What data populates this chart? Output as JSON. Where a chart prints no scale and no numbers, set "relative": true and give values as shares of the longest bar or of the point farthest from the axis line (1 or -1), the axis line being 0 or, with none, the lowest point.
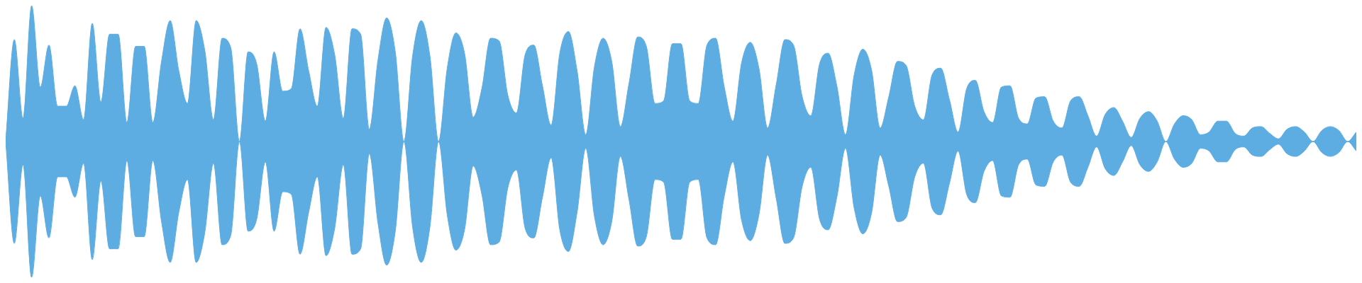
{
  "chart_data": {
    "type": "area",
    "relative": true,
    "legend": false,
    "marker": "none",
    "categories": [
      null,
      null,
      null,
      null,
      null,
      null,
      null,
      null,
      null,
      null,
      null,
      null,
      null,
      null,
      null,
      null,
      null,
      null,
      null,
      null,
      null,
      null,
      null,
      null,
      null,
      null,
      null,
      null,
      null,
      null,
      null,
      null,
      null,
      null,
      null,
      null,
      null,
      null,
      null,
      null,
      null,
      null,
      null,
      null,
      null,
      null,
      null,
      null,
      null,
      null,
      null,
      null,
      null,
      null,
      null,
      null,
      null,
      null,
      null,
      null,
      null,
      null,
      null,
      null,
      null,
      null,
      null,
      null,
      null,
      null,
      null,
      null,
      null,
      null,
      null,
      null,
      null,
      null,
      null,
      null,
      null,
      null,
      null,
      null,
      null,
      null,
      null,
      null,
      null,
      null,
      null,
      null,
      null,
      null,
      null,
      null,
      null,
      null,
      null,
      null,
      null,
      null,
      null,
      null,
      null,
      null,
      null,
      null,
      null,
      null,
      null,
      null,
      null,
      null,
      null,
      null,
      null,
      null,
      null,
      null,
      null,
      null,
      null,
      null,
      null,
      null,
      null,
      null,
      null,
      null,
      null,
      null,
      null,
      null,
      null,
      null,
      null,
      null,
      null,
      null,
      null,
      null,
      null,
      null,
      null,
      null,
      null,
      null,
      null,
      null,
      null,
      null,
      null,
      null,
      null,
      null,
      null
    ],
    "series": [
      {
        "color": "#5dade2",
        "values": [
          0,
          0.75,
          0.17,
          1,
          0.4,
          0.71,
          0.26,
          0.26,
          0.41,
          0.16,
          0.87,
          0.29,
          0.79,
          0.79,
          0.14,
          0.7,
          0.7,
          0.14,
          0.59,
          0.89,
          0.52,
          0.28,
          0.89,
          0.67,
          0.16,
          0.76,
          0.69,
          0,
          0.66,
          0.57,
          0.15,
          0.66,
          0.37,
          0.39,
          0.83,
          0.52,
          0.26,
          0.84,
          0.64,
          0.17,
          0.83,
          0.79,
          0.09,
          0.6,
          0.91,
          0.66,
          0,
          0.63,
          0.89,
          0.63,
          0,
          0.54,
          0.8,
          0.65,
          0.18,
          0.39,
          0.76,
          0.74,
          0.34,
          0.21,
          0.64,
          0.71,
          0.41,
          0.12,
          0.65,
          0.81,
          0.52,
          0.05,
          0.55,
          0.76,
          0.59,
          0.11,
          0.43,
          0.77,
          0.7,
          0.28,
          0.3,
          0.72,
          0.72,
          0.3,
          0.28,
          0.71,
          0.76,
          0.4,
          0.15,
          0.58,
          0.73,
          0.54,
          0.1,
          0.42,
          0.75,
          0.71,
          0.33,
          0.19,
          0.57,
          0.65,
          0.41,
          0.05,
          0.49,
          0.68,
          0.53,
          0.1,
          0.33,
          0.59,
          0.56,
          0.26,
          0.16,
          0.49,
          0.54,
          0.31,
          0.07,
          0.39,
          0.45,
          0.22,
          0.14,
          0.4,
          0.41,
          0.17,
          0.13,
          0.32,
          0.33,
          0.15,
          0.1,
          0.3,
          0.33,
          0.19,
          0.04,
          0.2,
          0.25,
          0.15,
          0.03,
          0.17,
          0.22,
          0.15,
          0,
          0.13,
          0.19,
          0.16,
          0.05,
          0.07,
          0.15,
          0.15,
          0.06,
          0.04,
          0.1,
          0.11,
          0.06,
          0.02,
          0.09,
          0.11,
          0.07,
          0,
          0.08,
          0.11,
          0.08,
          0,
          0.07
        ]
      },
      {
        "color": "#5dade2",
        "values": [
          0,
          -0.75,
          -0.17,
          -1,
          -0.4,
          -0.71,
          -0.26,
          -0.26,
          -0.41,
          -0.16,
          -0.87,
          -0.29,
          -0.79,
          -0.79,
          -0.14,
          -0.7,
          -0.7,
          -0.14,
          -0.59,
          -0.89,
          -0.52,
          -0.28,
          -0.89,
          -0.67,
          -0.16,
          -0.76,
          -0.69,
          0,
          -0.66,
          -0.57,
          -0.15,
          -0.66,
          -0.37,
          -0.39,
          -0.83,
          -0.52,
          -0.26,
          -0.84,
          -0.64,
          -0.17,
          -0.83,
          -0.79,
          -0.09,
          -0.6,
          -0.91,
          -0.66,
          0,
          -0.63,
          -0.89,
          -0.63,
          0,
          -0.54,
          -0.8,
          -0.65,
          -0.18,
          -0.39,
          -0.76,
          -0.74,
          -0.34,
          -0.21,
          -0.64,
          -0.71,
          -0.41,
          -0.12,
          -0.65,
          -0.81,
          -0.52,
          -0.05,
          -0.55,
          -0.76,
          -0.59,
          -0.11,
          -0.43,
          -0.77,
          -0.7,
          -0.28,
          -0.3,
          -0.72,
          -0.72,
          -0.3,
          -0.28,
          -0.71,
          -0.76,
          -0.4,
          -0.15,
          -0.58,
          -0.73,
          -0.54,
          -0.1,
          -0.42,
          -0.75,
          -0.71,
          -0.33,
          -0.19,
          -0.57,
          -0.65,
          -0.41,
          -0.05,
          -0.49,
          -0.68,
          -0.53,
          -0.1,
          -0.33,
          -0.59,
          -0.56,
          -0.26,
          -0.16,
          -0.49,
          -0.54,
          -0.31,
          -0.07,
          -0.39,
          -0.45,
          -0.22,
          -0.14,
          -0.4,
          -0.41,
          -0.17,
          -0.13,
          -0.32,
          -0.33,
          -0.15,
          -0.1,
          -0.3,
          -0.33,
          -0.19,
          -0.04,
          -0.2,
          -0.25,
          -0.15,
          -0.03,
          -0.17,
          -0.22,
          -0.15,
          0,
          -0.13,
          -0.19,
          -0.16,
          -0.05,
          -0.07,
          -0.15,
          -0.15,
          -0.06,
          -0.04,
          -0.1,
          -0.11,
          -0.06,
          -0.02,
          -0.09,
          -0.11,
          -0.07,
          0,
          -0.08,
          -0.11,
          -0.08,
          0,
          -0.07
        ]
      }
    ]
  }
}
